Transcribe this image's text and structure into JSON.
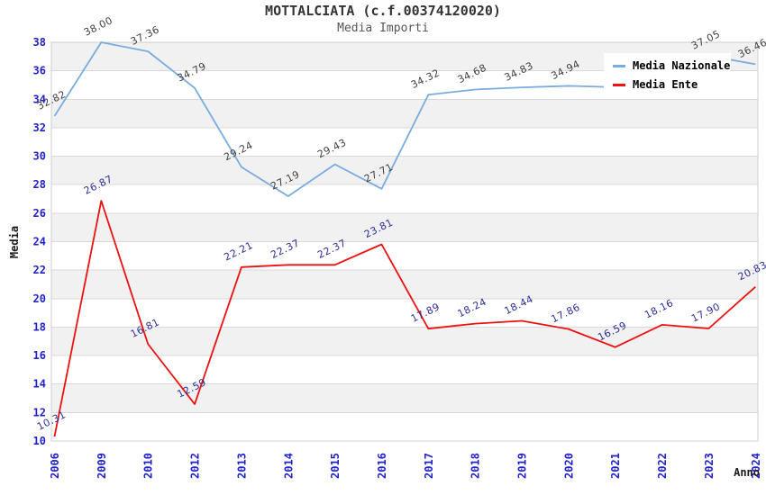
{
  "title": "MOTTALCIATA (c.f.00374120020)",
  "subtitle": "Media Importi",
  "chart_data": {
    "type": "line",
    "title": "MOTTALCIATA (c.f.00374120020)",
    "subtitle": "Media Importi",
    "xlabel": "Anno",
    "ylabel": "Media",
    "ylim": [
      10,
      38
    ],
    "y_ticks": [
      10,
      12,
      14,
      16,
      18,
      20,
      22,
      24,
      26,
      28,
      30,
      32,
      34,
      36,
      38
    ],
    "categories": [
      "2006",
      "2009",
      "2010",
      "2012",
      "2013",
      "2014",
      "2015",
      "2016",
      "2017",
      "2018",
      "2019",
      "2020",
      "2021",
      "2022",
      "2023",
      "2024"
    ],
    "series": [
      {
        "name": "Media Nazionale",
        "color": "#78ace0",
        "label_color": "#3f3f3f",
        "values": [
          32.82,
          38.0,
          37.36,
          34.79,
          29.24,
          27.19,
          29.43,
          27.71,
          34.32,
          34.68,
          34.83,
          34.94,
          34.85,
          35.6,
          37.05,
          36.46
        ],
        "labels": [
          "32.82",
          "38.00",
          "37.36",
          "34.79",
          "29.24",
          "27.19",
          "29.43",
          "27.71",
          "34.32",
          "34.68",
          "34.83",
          "34.94",
          null,
          null,
          "37.05",
          "36.46"
        ]
      },
      {
        "name": "Media Ente",
        "color": "#ee1111",
        "label_color": "#2d2d99",
        "values": [
          10.31,
          26.87,
          16.81,
          12.59,
          22.21,
          22.37,
          22.37,
          23.81,
          17.89,
          18.24,
          18.44,
          17.86,
          16.59,
          18.16,
          17.9,
          20.83
        ],
        "labels": [
          "10.31",
          "26.87",
          "16.81",
          "12.59",
          "22.21",
          "22.37",
          "22.37",
          "23.81",
          "17.89",
          "18.24",
          "18.44",
          "17.86",
          "16.59",
          "18.16",
          "17.90",
          "20.83"
        ]
      }
    ],
    "legend_position": "top-right",
    "grid": "horizontal gridlines every 2 units with alternating light-gray bands"
  },
  "style": {
    "band_fill": "#f1f1f1",
    "gridline_color": "#d9d9d9",
    "plot_border_color": "#cfcfcf",
    "tick_label_color": "#2121cc",
    "axis_title_color": "#1a1a1a"
  }
}
